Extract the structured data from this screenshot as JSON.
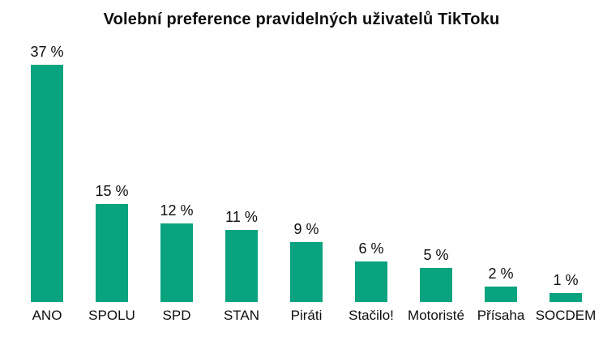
{
  "title": "Volební preference pravidelných uživatelů TikToku",
  "colors": {
    "bar": "#0aa37f",
    "text": "#0d0d0d",
    "background": "#ffffff"
  },
  "chart_data": {
    "type": "bar",
    "title": "Volební preference pravidelných uživatelů TikToku",
    "categories": [
      "ANO",
      "SPOLU",
      "SPD",
      "STAN",
      "Piráti",
      "Stačilo!",
      "Motoristé",
      "Přísaha",
      "SOCDEM"
    ],
    "values": [
      37,
      15,
      12,
      11,
      9,
      6,
      5,
      2,
      1
    ],
    "value_labels": [
      "37 %",
      "15 %",
      "12 %",
      "11 %",
      "9 %",
      "6 %",
      "5 %",
      "2 %",
      "1 %"
    ],
    "value_suffix": " %",
    "xlabel": "",
    "ylabel": "",
    "ylim": [
      0,
      40
    ],
    "grid": false,
    "legend": false,
    "bar_color": "#0aa37f"
  }
}
